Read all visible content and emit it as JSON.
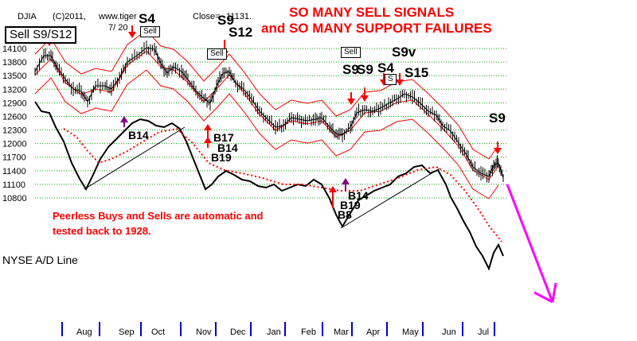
{
  "header": {
    "index": "DJIA",
    "copyright": "(C)2011,",
    "site": "www.tiger",
    "date": "7/ 20",
    "close_label": "Close=",
    "close_value": "11131."
  },
  "headline": {
    "line1": "SO MANY SELL SIGNALS",
    "line2": "and SO MANY SUPPORT FAILURES"
  },
  "boxes": {
    "main": "Sell S9/S12",
    "sell_oct": "Sell",
    "sell_dec": "Sell",
    "sell_apr": "Sell",
    "sell_may": "S"
  },
  "signals": {
    "s4_oct": "S4",
    "s9_dec": "S9",
    "s12_dec": "S12",
    "s9_apr_a": "S9",
    "s9_apr_b": "S9",
    "s9v": "S9v",
    "s4_may": "S4",
    "s15": "S15",
    "s9_jul": "S9"
  },
  "buys": {
    "b14_sep": "B14",
    "b17": "B17",
    "b14_nov": "B14",
    "b19": "B19",
    "b14_mar": "B14",
    "b19_mar": "B19",
    "b8": "B8"
  },
  "ad_line_label": "NYSE A/D Line",
  "note": {
    "line1": "Peerless Buys and Sells are automatic and",
    "line2": "tested back to 1928."
  },
  "colors": {
    "sell_arrow": "#ff0000",
    "buy_arrow": "#800080",
    "band": "#ff0000",
    "ma": "#ff0000",
    "grid": "#00aa00",
    "projection": "#ff00ff",
    "month_tick": "#0000cc"
  },
  "chart_data": {
    "type": "line",
    "title": "SO MANY SELL SIGNALS and SO MANY SUPPORT FAILURES",
    "xlabel": "",
    "ylabel": "",
    "x": [
      "Aug",
      "Sep",
      "Oct",
      "Nov",
      "Dec",
      "Jan",
      "Feb",
      "Mar",
      "Apr",
      "May",
      "Jun",
      "Jul"
    ],
    "y_ticks": [
      14100,
      13800,
      13500,
      13200,
      12900,
      12600,
      12300,
      12000,
      11700,
      11400,
      11100,
      10800
    ],
    "ylim": [
      10800,
      14100
    ],
    "grid": true,
    "series": [
      {
        "name": "DJIA",
        "values": [
          13900,
          13500,
          14100,
          13000,
          13500,
          12500,
          12300,
          12100,
          12600,
          12900,
          11900,
          11100
        ]
      },
      {
        "name": "NYSE A/D Line",
        "values": [
          11100,
          11900,
          12300,
          11300,
          11500,
          11300,
          11000,
          11000,
          11400,
          11900,
          11000,
          10400
        ]
      }
    ]
  }
}
